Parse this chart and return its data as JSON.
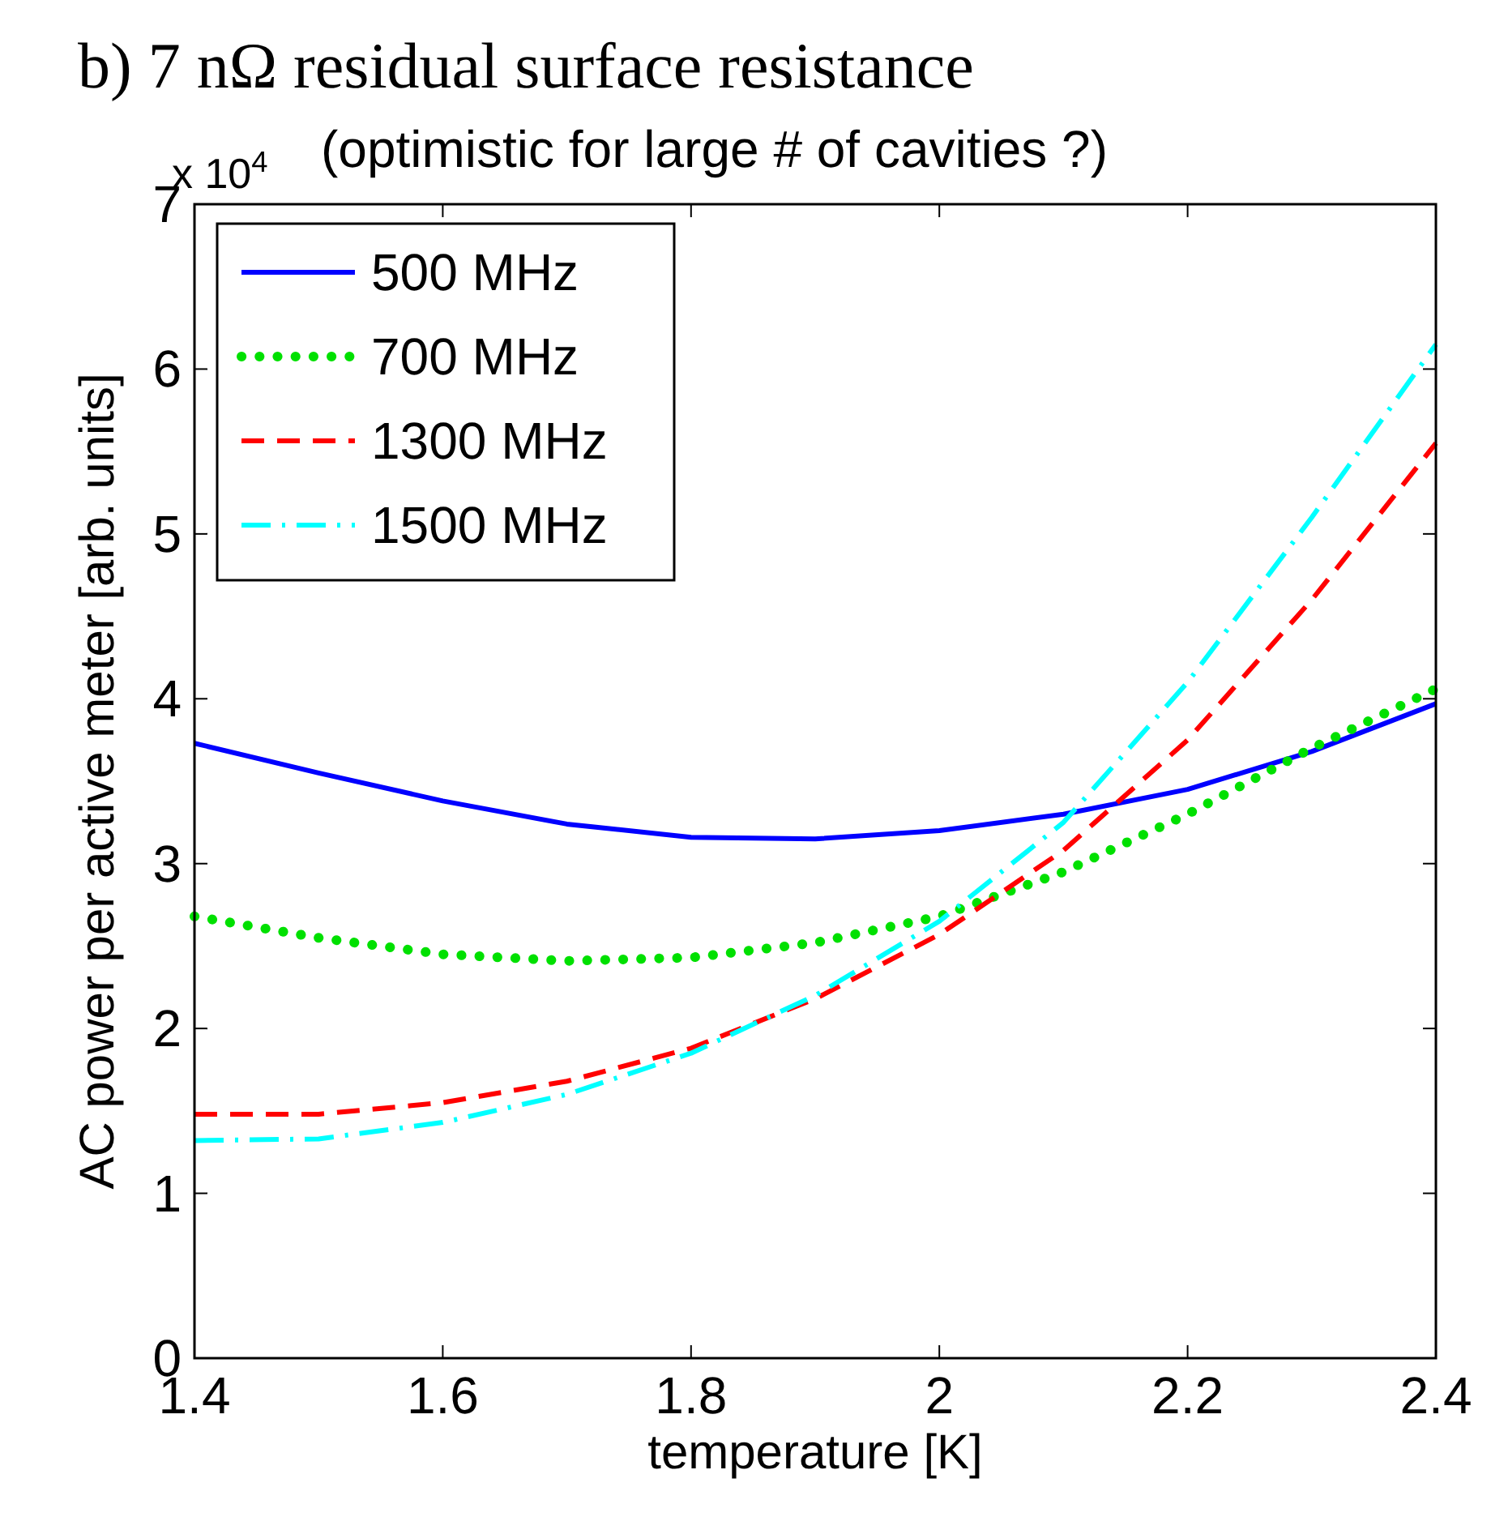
{
  "chart_data": {
    "type": "line",
    "title": "b) 7 nΩ residual surface resistance",
    "subtitle": "(optimistic for large # of cavities ?)",
    "xlabel": "temperature [K]",
    "ylabel": "AC power per active meter [arb. units]",
    "annotations": [
      "x 10$^{4}$"
    ],
    "x": [
      1.4,
      1.5,
      1.6,
      1.7,
      1.8,
      1.9,
      2.0,
      2.1,
      2.2,
      2.3,
      2.4
    ],
    "series": [
      {
        "name": "500 MHz",
        "color": "#0000ff",
        "line_style": "solid",
        "values": [
          3.73,
          3.55,
          3.38,
          3.24,
          3.16,
          3.15,
          3.2,
          3.3,
          3.45,
          3.68,
          3.97
        ]
      },
      {
        "name": "700 MHz",
        "color": "#00e000",
        "line_style": "dotted",
        "values": [
          2.68,
          2.55,
          2.45,
          2.41,
          2.43,
          2.52,
          2.68,
          2.95,
          3.3,
          3.7,
          4.06
        ]
      },
      {
        "name": "1300 MHz",
        "color": "#ff0000",
        "line_style": "dashed",
        "values": [
          1.48,
          1.48,
          1.55,
          1.68,
          1.88,
          2.18,
          2.57,
          3.08,
          3.75,
          4.6,
          5.55
        ]
      },
      {
        "name": "1500 MHz",
        "color": "#00ffff",
        "line_style": "dashdot",
        "values": [
          1.32,
          1.33,
          1.43,
          1.6,
          1.85,
          2.2,
          2.65,
          3.25,
          4.1,
          5.1,
          6.15
        ]
      }
    ],
    "xlim": [
      1.4,
      2.4
    ],
    "xticks": [
      1.4,
      1.6,
      1.8,
      2,
      2.2,
      2.4
    ],
    "ylim": [
      0,
      7
    ],
    "yticks": [
      0,
      1,
      2,
      3,
      4,
      5,
      6,
      7
    ],
    "grid": false,
    "legend": "top left"
  }
}
